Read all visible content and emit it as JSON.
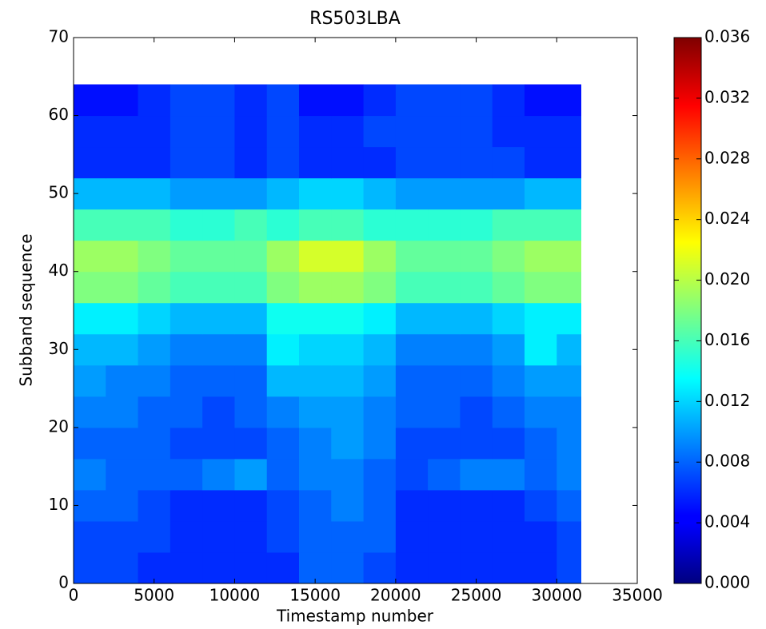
{
  "chart_data": {
    "type": "heatmap",
    "title": "RS503LBA",
    "x_label": "Timestamp number",
    "y_label": "Subband sequence",
    "colormap": "jet",
    "xlim": [
      0,
      35000
    ],
    "xticks": [
      0,
      5000,
      10000,
      15000,
      20000,
      25000,
      30000,
      35000
    ],
    "ylim": [
      0,
      70
    ],
    "yticks": [
      0,
      10,
      20,
      30,
      40,
      50,
      60,
      70
    ],
    "xbins": [
      0,
      2000,
      4000,
      6000,
      8000,
      10000,
      12000,
      14000,
      16000,
      18000,
      20000,
      22000,
      24000,
      26000,
      28000,
      30000,
      31500
    ],
    "ybins": [
      0,
      4,
      8,
      12,
      16,
      20,
      24,
      28,
      32,
      36,
      40,
      44,
      48,
      52,
      56,
      60,
      64
    ],
    "zlim": [
      0,
      0.036
    ],
    "zticks": [
      {
        "value": 0,
        "label": "0.000"
      },
      {
        "value": 0.004,
        "label": "0.004"
      },
      {
        "value": 0.008,
        "label": "0.008"
      },
      {
        "value": 0.012,
        "label": "0.012"
      },
      {
        "value": 0.016,
        "label": "0.016"
      },
      {
        "value": 0.02,
        "label": "0.020"
      },
      {
        "value": 0.024,
        "label": "0.024"
      },
      {
        "value": 0.028,
        "label": "0.028"
      },
      {
        "value": 0.032,
        "label": "0.032"
      },
      {
        "value": 0.036,
        "label": "0.036"
      }
    ],
    "z": [
      [
        0.007,
        0.007,
        0.006,
        0.006,
        0.006,
        0.006,
        0.006,
        0.008,
        0.008,
        0.007,
        0.006,
        0.006,
        0.006,
        0.006,
        0.006,
        0.007
      ],
      [
        0.007,
        0.007,
        0.007,
        0.006,
        0.006,
        0.006,
        0.007,
        0.008,
        0.008,
        0.008,
        0.006,
        0.006,
        0.006,
        0.006,
        0.006,
        0.007
      ],
      [
        0.008,
        0.008,
        0.007,
        0.006,
        0.006,
        0.006,
        0.007,
        0.008,
        0.009,
        0.008,
        0.006,
        0.006,
        0.006,
        0.006,
        0.007,
        0.008
      ],
      [
        0.009,
        0.008,
        0.008,
        0.008,
        0.009,
        0.01,
        0.008,
        0.009,
        0.009,
        0.008,
        0.007,
        0.008,
        0.009,
        0.009,
        0.008,
        0.009
      ],
      [
        0.008,
        0.008,
        0.008,
        0.007,
        0.007,
        0.007,
        0.008,
        0.009,
        0.01,
        0.009,
        0.007,
        0.007,
        0.007,
        0.007,
        0.008,
        0.009
      ],
      [
        0.009,
        0.009,
        0.008,
        0.008,
        0.007,
        0.008,
        0.009,
        0.01,
        0.01,
        0.009,
        0.008,
        0.008,
        0.007,
        0.008,
        0.009,
        0.009
      ],
      [
        0.01,
        0.009,
        0.009,
        0.008,
        0.008,
        0.008,
        0.011,
        0.011,
        0.011,
        0.01,
        0.008,
        0.008,
        0.008,
        0.009,
        0.01,
        0.01
      ],
      [
        0.011,
        0.011,
        0.01,
        0.009,
        0.009,
        0.009,
        0.013,
        0.012,
        0.012,
        0.011,
        0.009,
        0.009,
        0.009,
        0.01,
        0.013,
        0.011
      ],
      [
        0.013,
        0.013,
        0.012,
        0.011,
        0.011,
        0.011,
        0.014,
        0.014,
        0.014,
        0.013,
        0.011,
        0.011,
        0.011,
        0.012,
        0.013,
        0.013
      ],
      [
        0.018,
        0.018,
        0.017,
        0.016,
        0.016,
        0.016,
        0.018,
        0.019,
        0.019,
        0.018,
        0.016,
        0.016,
        0.016,
        0.017,
        0.018,
        0.018
      ],
      [
        0.019,
        0.019,
        0.018,
        0.017,
        0.017,
        0.017,
        0.019,
        0.021,
        0.021,
        0.019,
        0.017,
        0.017,
        0.017,
        0.018,
        0.019,
        0.019
      ],
      [
        0.016,
        0.016,
        0.016,
        0.015,
        0.015,
        0.016,
        0.015,
        0.016,
        0.016,
        0.015,
        0.015,
        0.015,
        0.015,
        0.016,
        0.016,
        0.016
      ],
      [
        0.011,
        0.011,
        0.011,
        0.01,
        0.01,
        0.01,
        0.011,
        0.012,
        0.012,
        0.011,
        0.01,
        0.01,
        0.01,
        0.01,
        0.011,
        0.011
      ],
      [
        0.006,
        0.006,
        0.006,
        0.007,
        0.007,
        0.006,
        0.007,
        0.006,
        0.006,
        0.006,
        0.007,
        0.007,
        0.007,
        0.007,
        0.006,
        0.006
      ],
      [
        0.006,
        0.006,
        0.006,
        0.007,
        0.007,
        0.006,
        0.007,
        0.006,
        0.006,
        0.007,
        0.007,
        0.007,
        0.007,
        0.006,
        0.006,
        0.006
      ],
      [
        0.005,
        0.005,
        0.006,
        0.007,
        0.007,
        0.006,
        0.007,
        0.005,
        0.005,
        0.006,
        0.007,
        0.007,
        0.007,
        0.006,
        0.005,
        0.005
      ]
    ]
  }
}
